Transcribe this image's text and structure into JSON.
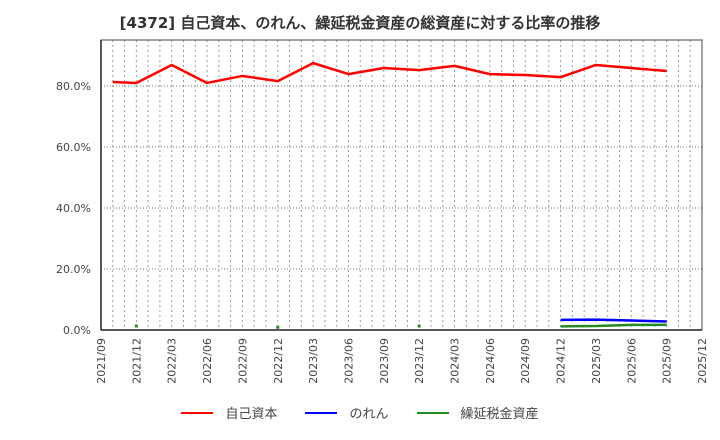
{
  "title": "[4372]  自己資本、のれん、繰延税金資産の総資産に対する比率の推移",
  "legend": [
    {
      "label": "自己資本",
      "color": "#ff0000"
    },
    {
      "label": "のれん",
      "color": "#0000ff"
    },
    {
      "label": "繰延税金資産",
      "color": "#228b22"
    }
  ],
  "chart_data": {
    "type": "line",
    "title": "[4372]  自己資本、のれん、繰延税金資産の総資産に対する比率の推移",
    "xlabel": "",
    "ylabel": "",
    "ylim": [
      0,
      90
    ],
    "grid": true,
    "legend_position": "bottom",
    "y_ticks": [
      "0.0%",
      "20.0%",
      "40.0%",
      "60.0%",
      "80.0%"
    ],
    "x_ticks": [
      "2021/09",
      "2021/12",
      "2022/03",
      "2022/06",
      "2022/09",
      "2022/12",
      "2023/03",
      "2023/06",
      "2023/09",
      "2023/12",
      "2024/03",
      "2024/06",
      "2024/09",
      "2024/12",
      "2025/03",
      "2025/06",
      "2025/09",
      "2025/12"
    ],
    "x": [
      "2021/10",
      "2021/12",
      "2022/03",
      "2022/06",
      "2022/09",
      "2022/12",
      "2023/03",
      "2023/06",
      "2023/09",
      "2023/12",
      "2024/03",
      "2024/06",
      "2024/09",
      "2024/12",
      "2025/03",
      "2025/06",
      "2025/09"
    ],
    "series": [
      {
        "name": "自己資本",
        "color": "#ff0000",
        "values": [
          81.3,
          81.0,
          86.9,
          81.0,
          83.3,
          81.6,
          87.5,
          83.9,
          85.9,
          85.2,
          86.6,
          83.9,
          83.6,
          82.9,
          86.9,
          85.9,
          84.9
        ]
      },
      {
        "name": "のれん",
        "color": "#0000ff",
        "values": [
          null,
          null,
          null,
          null,
          null,
          null,
          null,
          null,
          null,
          null,
          null,
          null,
          null,
          3.3,
          3.4,
          3.1,
          2.8
        ]
      },
      {
        "name": "繰延税金資産",
        "color": "#228b22",
        "values": [
          null,
          1.3,
          null,
          null,
          null,
          0.9,
          null,
          null,
          null,
          1.3,
          null,
          null,
          null,
          1.2,
          1.3,
          1.7,
          1.7
        ]
      }
    ]
  }
}
